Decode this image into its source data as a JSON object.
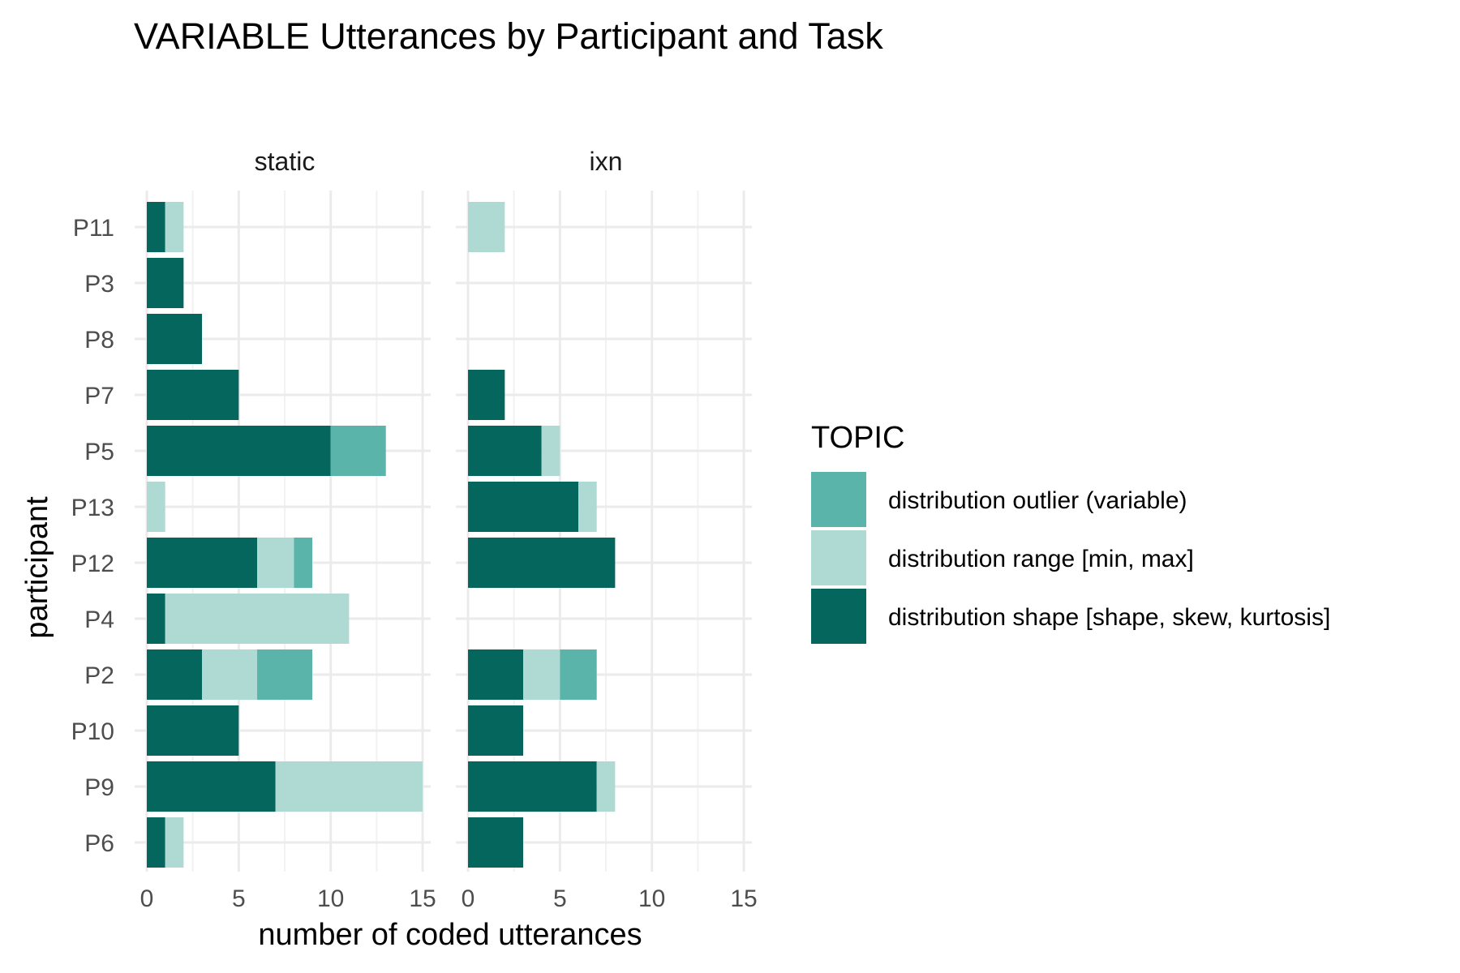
{
  "chart_data": {
    "type": "bar",
    "orientation": "horizontal",
    "stacked": true,
    "title": "VARIABLE Utterances by Participant and Task",
    "xlabel": "number of coded utterances",
    "ylabel": "participant",
    "xlim": [
      0,
      15
    ],
    "xticks": [
      "0",
      "5",
      "10",
      "15"
    ],
    "grid": true,
    "categories": [
      "P11",
      "P3",
      "P8",
      "P7",
      "P5",
      "P13",
      "P12",
      "P4",
      "P2",
      "P10",
      "P9",
      "P6"
    ],
    "legend": {
      "title": "TOPIC",
      "position": "right",
      "entries": [
        {
          "label": "distribution outlier (variable)",
          "color": "#5ab4a9"
        },
        {
          "label": "distribution range [min, max]",
          "color": "#afd9d3"
        },
        {
          "label": "distribution shape [shape, skew, kurtosis]",
          "color": "#05665d"
        }
      ]
    },
    "panels": [
      {
        "label": "static",
        "series": [
          {
            "name": "distribution shape [shape, skew, kurtosis]",
            "color": "#05665d",
            "values": [
              1,
              2,
              3,
              5,
              10,
              0,
              6,
              1,
              3,
              5,
              7,
              1
            ]
          },
          {
            "name": "distribution range [min, max]",
            "color": "#afd9d3",
            "values": [
              1,
              0,
              0,
              0,
              0,
              1,
              2,
              10,
              3,
              0,
              8,
              1
            ]
          },
          {
            "name": "distribution outlier (variable)",
            "color": "#5ab4a9",
            "values": [
              0,
              0,
              0,
              0,
              3,
              0,
              1,
              0,
              3,
              0,
              0,
              0
            ]
          }
        ]
      },
      {
        "label": "ixn",
        "series": [
          {
            "name": "distribution shape [shape, skew, kurtosis]",
            "color": "#05665d",
            "values": [
              0,
              0,
              0,
              2,
              4,
              6,
              8,
              0,
              3,
              3,
              7,
              3
            ]
          },
          {
            "name": "distribution range [min, max]",
            "color": "#afd9d3",
            "values": [
              2,
              0,
              0,
              0,
              1,
              1,
              0,
              0,
              2,
              0,
              1,
              0
            ]
          },
          {
            "name": "distribution outlier (variable)",
            "color": "#5ab4a9",
            "values": [
              0,
              0,
              0,
              0,
              0,
              0,
              0,
              0,
              2,
              0,
              0,
              0
            ]
          }
        ]
      }
    ]
  }
}
